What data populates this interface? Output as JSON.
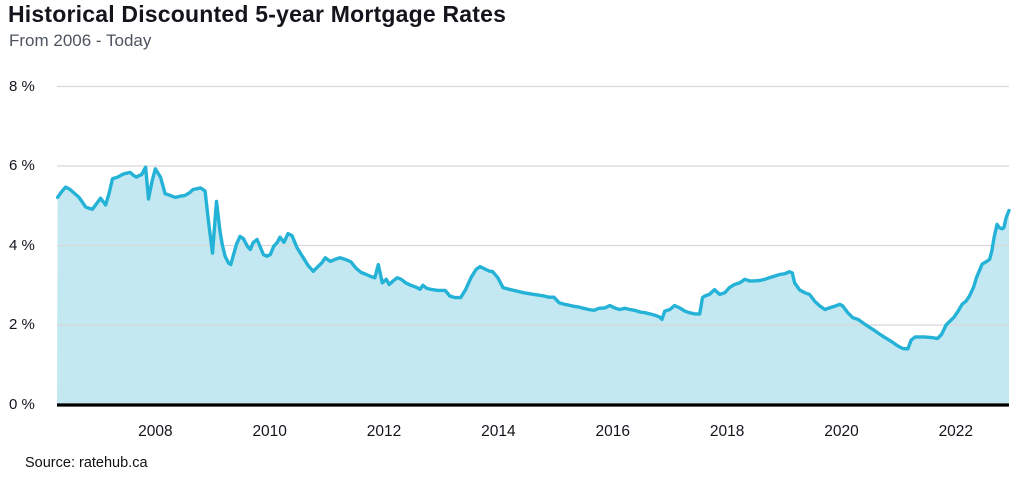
{
  "header": {
    "title": "Historical Discounted 5-year Mortgage Rates",
    "subtitle": "From 2006 - Today"
  },
  "footer": {
    "source": "Source: ratehub.ca"
  },
  "colors": {
    "line": "#24b2d6",
    "fill": "#c3e8f2",
    "grid": "#d8d8d8",
    "baseline": "#000000",
    "title": "#14141c",
    "subtitle": "#4e5560",
    "tick": "#14141c",
    "source": "#111111"
  },
  "chart_data": {
    "type": "area",
    "title": "Historical Discounted 5-year Mortgage Rates",
    "subtitle": "From 2006 - Today",
    "xlabel": "",
    "ylabel": "",
    "xlim": [
      2006.28,
      2022.93
    ],
    "ylim": [
      0,
      8
    ],
    "grid": "horizontal",
    "legend": "none",
    "y_ticks": [
      {
        "value": 0,
        "label": "0 %"
      },
      {
        "value": 2,
        "label": "2 %"
      },
      {
        "value": 4,
        "label": "4 %"
      },
      {
        "value": 6,
        "label": "6 %"
      },
      {
        "value": 8,
        "label": "8 %"
      }
    ],
    "x_ticks": [
      {
        "value": 2008,
        "label": "2008"
      },
      {
        "value": 2010,
        "label": "2010"
      },
      {
        "value": 2012,
        "label": "2012"
      },
      {
        "value": 2014,
        "label": "2014"
      },
      {
        "value": 2016,
        "label": "2016"
      },
      {
        "value": 2018,
        "label": "2018"
      },
      {
        "value": 2020,
        "label": "2020"
      },
      {
        "value": 2022,
        "label": "2022"
      }
    ],
    "series": [
      {
        "name": "Discounted 5-year mortgage rate (%)",
        "points": [
          [
            2006.29,
            5.21
          ],
          [
            2006.36,
            5.35
          ],
          [
            2006.43,
            5.47
          ],
          [
            2006.5,
            5.42
          ],
          [
            2006.57,
            5.33
          ],
          [
            2006.66,
            5.22
          ],
          [
            2006.73,
            5.08
          ],
          [
            2006.78,
            4.97
          ],
          [
            2006.85,
            4.93
          ],
          [
            2006.9,
            4.91
          ],
          [
            2006.97,
            5.05
          ],
          [
            2007.04,
            5.19
          ],
          [
            2007.09,
            5.1
          ],
          [
            2007.13,
            5.02
          ],
          [
            2007.19,
            5.3
          ],
          [
            2007.25,
            5.68
          ],
          [
            2007.34,
            5.72
          ],
          [
            2007.44,
            5.8
          ],
          [
            2007.5,
            5.82
          ],
          [
            2007.56,
            5.84
          ],
          [
            2007.62,
            5.76
          ],
          [
            2007.67,
            5.72
          ],
          [
            2007.72,
            5.76
          ],
          [
            2007.76,
            5.78
          ],
          [
            2007.83,
            5.97
          ],
          [
            2007.88,
            5.17
          ],
          [
            2007.94,
            5.6
          ],
          [
            2008.0,
            5.93
          ],
          [
            2008.09,
            5.72
          ],
          [
            2008.17,
            5.3
          ],
          [
            2008.26,
            5.26
          ],
          [
            2008.35,
            5.21
          ],
          [
            2008.44,
            5.24
          ],
          [
            2008.52,
            5.26
          ],
          [
            2008.6,
            5.33
          ],
          [
            2008.66,
            5.41
          ],
          [
            2008.73,
            5.43
          ],
          [
            2008.79,
            5.45
          ],
          [
            2008.87,
            5.37
          ],
          [
            2008.93,
            4.6
          ],
          [
            2009.0,
            3.81
          ],
          [
            2009.07,
            5.11
          ],
          [
            2009.13,
            4.36
          ],
          [
            2009.17,
            4.03
          ],
          [
            2009.22,
            3.73
          ],
          [
            2009.28,
            3.56
          ],
          [
            2009.32,
            3.52
          ],
          [
            2009.36,
            3.73
          ],
          [
            2009.42,
            4.03
          ],
          [
            2009.48,
            4.23
          ],
          [
            2009.54,
            4.17
          ],
          [
            2009.61,
            3.98
          ],
          [
            2009.66,
            3.9
          ],
          [
            2009.71,
            4.07
          ],
          [
            2009.78,
            4.15
          ],
          [
            2009.84,
            3.94
          ],
          [
            2009.89,
            3.77
          ],
          [
            2009.95,
            3.73
          ],
          [
            2010.01,
            3.77
          ],
          [
            2010.07,
            3.98
          ],
          [
            2010.13,
            4.07
          ],
          [
            2010.18,
            4.21
          ],
          [
            2010.25,
            4.08
          ],
          [
            2010.32,
            4.3
          ],
          [
            2010.39,
            4.25
          ],
          [
            2010.48,
            3.94
          ],
          [
            2010.57,
            3.73
          ],
          [
            2010.67,
            3.5
          ],
          [
            2010.76,
            3.35
          ],
          [
            2010.85,
            3.48
          ],
          [
            2010.91,
            3.56
          ],
          [
            2010.97,
            3.69
          ],
          [
            2011.06,
            3.6
          ],
          [
            2011.14,
            3.65
          ],
          [
            2011.23,
            3.69
          ],
          [
            2011.34,
            3.64
          ],
          [
            2011.42,
            3.59
          ],
          [
            2011.51,
            3.43
          ],
          [
            2011.6,
            3.32
          ],
          [
            2011.69,
            3.27
          ],
          [
            2011.77,
            3.22
          ],
          [
            2011.84,
            3.19
          ],
          [
            2011.9,
            3.52
          ],
          [
            2011.97,
            3.06
          ],
          [
            2012.04,
            3.15
          ],
          [
            2012.09,
            3.02
          ],
          [
            2012.16,
            3.11
          ],
          [
            2012.23,
            3.19
          ],
          [
            2012.3,
            3.15
          ],
          [
            2012.38,
            3.06
          ],
          [
            2012.47,
            3.0
          ],
          [
            2012.56,
            2.95
          ],
          [
            2012.63,
            2.9
          ],
          [
            2012.68,
            3.0
          ],
          [
            2012.75,
            2.92
          ],
          [
            2012.84,
            2.89
          ],
          [
            2012.94,
            2.87
          ],
          [
            2013.07,
            2.87
          ],
          [
            2013.15,
            2.73
          ],
          [
            2013.24,
            2.69
          ],
          [
            2013.34,
            2.69
          ],
          [
            2013.43,
            2.9
          ],
          [
            2013.52,
            3.19
          ],
          [
            2013.61,
            3.4
          ],
          [
            2013.68,
            3.47
          ],
          [
            2013.75,
            3.42
          ],
          [
            2013.83,
            3.36
          ],
          [
            2013.9,
            3.34
          ],
          [
            2013.99,
            3.19
          ],
          [
            2014.08,
            2.94
          ],
          [
            2014.18,
            2.9
          ],
          [
            2014.27,
            2.87
          ],
          [
            2014.36,
            2.84
          ],
          [
            2014.45,
            2.81
          ],
          [
            2014.53,
            2.79
          ],
          [
            2014.62,
            2.77
          ],
          [
            2014.71,
            2.75
          ],
          [
            2014.8,
            2.73
          ],
          [
            2014.88,
            2.7
          ],
          [
            2014.97,
            2.7
          ],
          [
            2015.06,
            2.56
          ],
          [
            2015.15,
            2.52
          ],
          [
            2015.23,
            2.5
          ],
          [
            2015.32,
            2.47
          ],
          [
            2015.41,
            2.45
          ],
          [
            2015.49,
            2.42
          ],
          [
            2015.58,
            2.39
          ],
          [
            2015.67,
            2.37
          ],
          [
            2015.76,
            2.42
          ],
          [
            2015.86,
            2.43
          ],
          [
            2015.95,
            2.49
          ],
          [
            2016.03,
            2.43
          ],
          [
            2016.12,
            2.39
          ],
          [
            2016.21,
            2.42
          ],
          [
            2016.3,
            2.39
          ],
          [
            2016.38,
            2.37
          ],
          [
            2016.47,
            2.33
          ],
          [
            2016.56,
            2.31
          ],
          [
            2016.65,
            2.28
          ],
          [
            2016.73,
            2.25
          ],
          [
            2016.82,
            2.2
          ],
          [
            2016.86,
            2.14
          ],
          [
            2016.91,
            2.35
          ],
          [
            2017.0,
            2.39
          ],
          [
            2017.08,
            2.49
          ],
          [
            2017.17,
            2.43
          ],
          [
            2017.26,
            2.35
          ],
          [
            2017.34,
            2.31
          ],
          [
            2017.43,
            2.28
          ],
          [
            2017.52,
            2.28
          ],
          [
            2017.57,
            2.69
          ],
          [
            2017.61,
            2.73
          ],
          [
            2017.69,
            2.77
          ],
          [
            2017.78,
            2.89
          ],
          [
            2017.87,
            2.77
          ],
          [
            2017.96,
            2.81
          ],
          [
            2018.04,
            2.94
          ],
          [
            2018.13,
            3.02
          ],
          [
            2018.22,
            3.06
          ],
          [
            2018.31,
            3.15
          ],
          [
            2018.39,
            3.11
          ],
          [
            2018.48,
            3.11
          ],
          [
            2018.57,
            3.12
          ],
          [
            2018.66,
            3.15
          ],
          [
            2018.74,
            3.19
          ],
          [
            2018.83,
            3.23
          ],
          [
            2018.92,
            3.27
          ],
          [
            2019.01,
            3.29
          ],
          [
            2019.09,
            3.34
          ],
          [
            2019.14,
            3.31
          ],
          [
            2019.18,
            3.06
          ],
          [
            2019.27,
            2.88
          ],
          [
            2019.36,
            2.81
          ],
          [
            2019.44,
            2.77
          ],
          [
            2019.53,
            2.6
          ],
          [
            2019.62,
            2.48
          ],
          [
            2019.71,
            2.39
          ],
          [
            2019.79,
            2.43
          ],
          [
            2019.88,
            2.47
          ],
          [
            2019.97,
            2.52
          ],
          [
            2020.02,
            2.48
          ],
          [
            2020.11,
            2.31
          ],
          [
            2020.2,
            2.18
          ],
          [
            2020.29,
            2.14
          ],
          [
            2020.37,
            2.06
          ],
          [
            2020.46,
            1.97
          ],
          [
            2020.55,
            1.89
          ],
          [
            2020.63,
            1.81
          ],
          [
            2020.72,
            1.72
          ],
          [
            2020.81,
            1.64
          ],
          [
            2020.9,
            1.56
          ],
          [
            2020.99,
            1.47
          ],
          [
            2021.07,
            1.41
          ],
          [
            2021.16,
            1.4
          ],
          [
            2021.22,
            1.62
          ],
          [
            2021.29,
            1.7
          ],
          [
            2021.45,
            1.7
          ],
          [
            2021.59,
            1.68
          ],
          [
            2021.68,
            1.66
          ],
          [
            2021.75,
            1.76
          ],
          [
            2021.83,
            2.0
          ],
          [
            2021.9,
            2.1
          ],
          [
            2021.97,
            2.2
          ],
          [
            2022.04,
            2.35
          ],
          [
            2022.11,
            2.52
          ],
          [
            2022.18,
            2.6
          ],
          [
            2022.24,
            2.73
          ],
          [
            2022.31,
            2.95
          ],
          [
            2022.36,
            3.19
          ],
          [
            2022.41,
            3.36
          ],
          [
            2022.46,
            3.53
          ],
          [
            2022.55,
            3.61
          ],
          [
            2022.59,
            3.65
          ],
          [
            2022.63,
            3.86
          ],
          [
            2022.67,
            4.2
          ],
          [
            2022.72,
            4.53
          ],
          [
            2022.76,
            4.45
          ],
          [
            2022.81,
            4.42
          ],
          [
            2022.84,
            4.45
          ],
          [
            2022.88,
            4.7
          ],
          [
            2022.93,
            4.88
          ]
        ]
      }
    ]
  }
}
